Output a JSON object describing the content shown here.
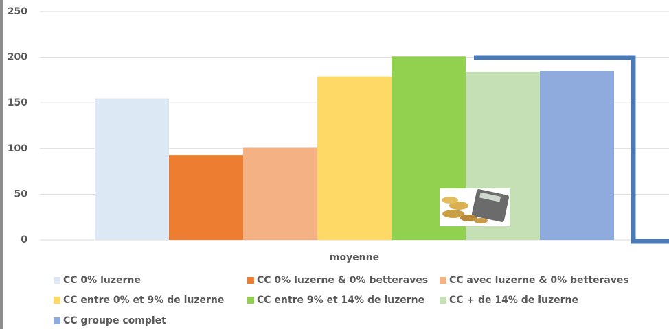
{
  "chart_data": {
    "type": "bar",
    "categories": [
      "moyenne"
    ],
    "series": [
      {
        "name": "CC 0% luzerne",
        "color": "#dde8f5",
        "values": [
          155
        ]
      },
      {
        "name": "CC 0% luzerne & 0% betteraves",
        "color": "#ed7d31",
        "values": [
          93
        ]
      },
      {
        "name": "CC avec luzerne & 0% betteraves",
        "color": "#f4b183",
        "values": [
          101
        ]
      },
      {
        "name": "CC entre 0% et 9% de luzerne",
        "color": "#ffd966",
        "values": [
          179
        ]
      },
      {
        "name": "CC entre 9% et 14% de luzerne",
        "color": "#92d050",
        "values": [
          201
        ]
      },
      {
        "name": "CC + de 14% de luzerne",
        "color": "#c5e0b4",
        "values": [
          184
        ]
      },
      {
        "name": "CC groupe complet",
        "color": "#8faadc",
        "values": [
          185
        ]
      }
    ],
    "ylim": [
      0,
      250
    ],
    "yticks": [
      0,
      50,
      100,
      150,
      200,
      250
    ],
    "grid": true
  }
}
